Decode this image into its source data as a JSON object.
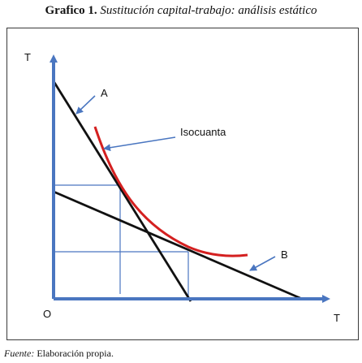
{
  "title": {
    "number": "Grafico 1.",
    "text": "Sustitución capital-trabajo: análisis estático"
  },
  "labels": {
    "y_axis": "T",
    "x_axis": "T",
    "origin": "O",
    "line_a": "A",
    "line_b": "B",
    "isoquant": "Isocuanta"
  },
  "source": {
    "prefix": "Fuente:",
    "text": "Elaboración propia."
  },
  "colors": {
    "axis": "#4a76c0",
    "budget_lines": "#111111",
    "isoquant": "#d42020",
    "guides": "#4a76c0",
    "arrows": "#4a76c0"
  }
}
